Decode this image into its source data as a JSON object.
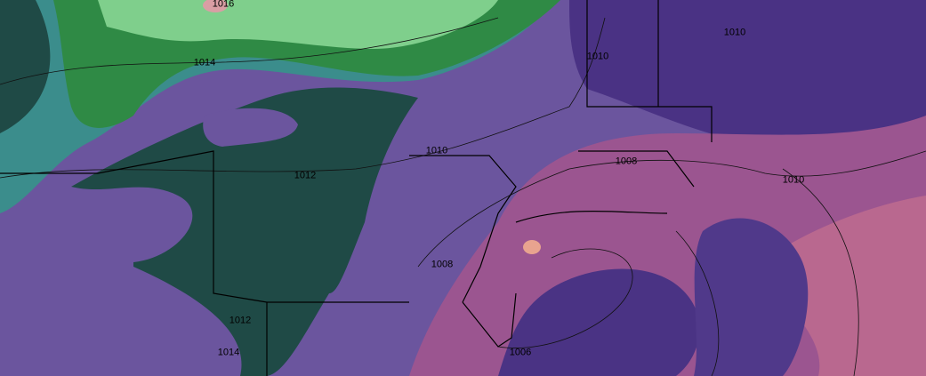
{
  "map": {
    "type": "surface pressure isobars over precipitable-water shading",
    "colors": {
      "base_purple": "#6b559e",
      "deep_purple": "#3e2a73",
      "dark_teal": "#1f4a45",
      "teal": "#3f8f8a",
      "green": "#2f8a45",
      "light_green": "#7ccf8a",
      "magenta": "#a2568f",
      "pink": "#c06a8e"
    },
    "isobar_labels": [
      "1016",
      "1014",
      "1010",
      "1010",
      "1010",
      "1012",
      "1008",
      "1010",
      "1008",
      "1012",
      "1014",
      "1006"
    ]
  }
}
